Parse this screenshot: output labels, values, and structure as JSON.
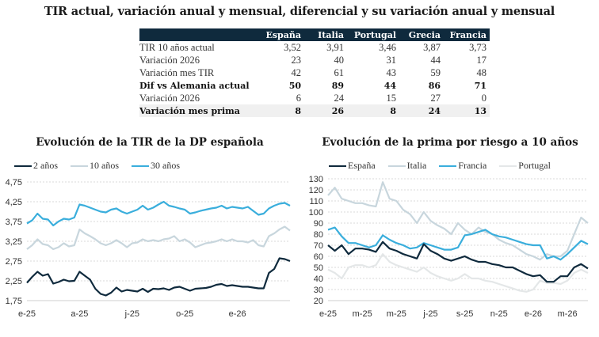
{
  "title": "TIR actual, variación anual y mensual, diferencial y su variación anual y mensual",
  "table": {
    "columns": [
      "España",
      "Italia",
      "Portugal",
      "Grecia",
      "Francia"
    ],
    "rows": [
      {
        "label": "TIR 10 años actual",
        "values": [
          "3,52",
          "3,91",
          "3,46",
          "3,87",
          "3,73"
        ],
        "bold": false,
        "shade": false
      },
      {
        "label": "Variación 2026",
        "values": [
          "23",
          "40",
          "31",
          "44",
          "17"
        ],
        "bold": false,
        "shade": false
      },
      {
        "label": "Variación mes TIR",
        "values": [
          "42",
          "61",
          "43",
          "59",
          "48"
        ],
        "bold": false,
        "shade": false
      },
      {
        "label": "Dif vs Alemania actual",
        "values": [
          "50",
          "89",
          "44",
          "86",
          "71"
        ],
        "bold": true,
        "shade": false
      },
      {
        "label": "Variación 2026",
        "values": [
          "6",
          "24",
          "15",
          "27",
          "0"
        ],
        "bold": false,
        "shade": false
      },
      {
        "label": "Variación mes prima",
        "values": [
          "8",
          "26",
          "8",
          "24",
          "13"
        ],
        "bold": true,
        "shade": true
      }
    ]
  },
  "chart_data": [
    {
      "type": "line",
      "title": "Evolución de la TIR de la DP española",
      "xlabel": "",
      "ylabel": "",
      "ylim": [
        1.75,
        4.75
      ],
      "yticks": [
        "4,75",
        "4,25",
        "3,75",
        "3,25",
        "2,75",
        "2,25",
        "1,75"
      ],
      "ytick_values": [
        4.75,
        4.25,
        3.75,
        3.25,
        2.75,
        2.25,
        1.75
      ],
      "xticks": [
        "e-25",
        "a-25",
        "j-25",
        "o-25",
        "e-26"
      ],
      "xtick_positions": [
        0,
        3,
        6,
        9,
        12
      ],
      "xlim": [
        0,
        15
      ],
      "grid": true,
      "legend_position": "top-left",
      "series": [
        {
          "name": "2 años",
          "color": "#0f2a3d",
          "x": [
            0,
            0.3,
            0.6,
            0.9,
            1.2,
            1.5,
            1.8,
            2.1,
            2.4,
            2.7,
            3.0,
            3.3,
            3.6,
            3.9,
            4.2,
            4.5,
            4.8,
            5.1,
            5.4,
            5.7,
            6.0,
            6.3,
            6.6,
            6.9,
            7.2,
            7.5,
            7.8,
            8.1,
            8.4,
            8.7,
            9.0,
            9.3,
            9.6,
            9.9,
            10.2,
            10.5,
            10.8,
            11.1,
            11.4,
            11.7,
            12.0,
            12.3,
            12.6,
            12.9,
            13.2,
            13.5,
            13.8,
            14.1,
            14.4,
            14.7,
            15.0
          ],
          "values": [
            2.2,
            2.35,
            2.48,
            2.38,
            2.42,
            2.18,
            2.22,
            2.28,
            2.24,
            2.25,
            2.48,
            2.38,
            2.28,
            2.05,
            1.92,
            1.88,
            1.95,
            2.08,
            1.98,
            2.02,
            2.0,
            1.98,
            2.05,
            1.97,
            2.05,
            2.04,
            2.06,
            2.02,
            2.08,
            2.1,
            2.05,
            2.0,
            2.05,
            2.06,
            2.07,
            2.1,
            2.15,
            2.17,
            2.12,
            2.14,
            2.12,
            2.1,
            2.1,
            2.08,
            2.06,
            2.06,
            2.45,
            2.55,
            2.82,
            2.8,
            2.75
          ]
        },
        {
          "name": "10 años",
          "color": "#c8d6dd",
          "x": [
            0,
            0.3,
            0.6,
            0.9,
            1.2,
            1.5,
            1.8,
            2.1,
            2.4,
            2.7,
            3.0,
            3.3,
            3.6,
            3.9,
            4.2,
            4.5,
            4.8,
            5.1,
            5.4,
            5.7,
            6.0,
            6.3,
            6.6,
            6.9,
            7.2,
            7.5,
            7.8,
            8.1,
            8.4,
            8.7,
            9.0,
            9.3,
            9.6,
            9.9,
            10.2,
            10.5,
            10.8,
            11.1,
            11.4,
            11.7,
            12.0,
            12.3,
            12.6,
            12.9,
            13.2,
            13.5,
            13.8,
            14.1,
            14.4,
            14.7,
            15.0
          ],
          "values": [
            3.05,
            3.15,
            3.3,
            3.18,
            3.15,
            3.05,
            3.1,
            3.2,
            3.12,
            3.15,
            3.55,
            3.45,
            3.38,
            3.3,
            3.2,
            3.15,
            3.2,
            3.28,
            3.2,
            3.1,
            3.2,
            3.22,
            3.3,
            3.25,
            3.28,
            3.25,
            3.3,
            3.32,
            3.38,
            3.25,
            3.3,
            3.22,
            3.1,
            3.15,
            3.2,
            3.22,
            3.25,
            3.3,
            3.25,
            3.3,
            3.25,
            3.25,
            3.22,
            3.28,
            3.15,
            3.12,
            3.38,
            3.45,
            3.55,
            3.62,
            3.52
          ]
        },
        {
          "name": "30 años",
          "color": "#3aaedc",
          "x": [
            0,
            0.3,
            0.6,
            0.9,
            1.2,
            1.5,
            1.8,
            2.1,
            2.4,
            2.7,
            3.0,
            3.3,
            3.6,
            3.9,
            4.2,
            4.5,
            4.8,
            5.1,
            5.4,
            5.7,
            6.0,
            6.3,
            6.6,
            6.9,
            7.2,
            7.5,
            7.8,
            8.1,
            8.4,
            8.7,
            9.0,
            9.3,
            9.6,
            9.9,
            10.2,
            10.5,
            10.8,
            11.1,
            11.4,
            11.7,
            12.0,
            12.3,
            12.6,
            12.9,
            13.2,
            13.5,
            13.8,
            14.1,
            14.4,
            14.7,
            15.0
          ],
          "values": [
            3.7,
            3.78,
            3.95,
            3.82,
            3.8,
            3.65,
            3.75,
            3.82,
            3.8,
            3.85,
            4.18,
            4.15,
            4.1,
            4.05,
            4.0,
            3.98,
            4.05,
            4.08,
            4.0,
            3.95,
            4.0,
            4.05,
            4.15,
            4.05,
            4.1,
            4.18,
            4.25,
            4.15,
            4.12,
            4.08,
            4.05,
            3.95,
            3.98,
            4.02,
            4.05,
            4.08,
            4.1,
            4.15,
            4.08,
            4.12,
            4.1,
            4.08,
            4.12,
            4.02,
            3.92,
            3.95,
            4.08,
            4.15,
            4.2,
            4.22,
            4.15
          ]
        }
      ]
    },
    {
      "type": "line",
      "title": "Evolución de la prima por riesgo a 10 años",
      "xlabel": "",
      "ylabel": "",
      "ylim": [
        20,
        130
      ],
      "yticks": [
        "130",
        "120",
        "110",
        "100",
        "90",
        "80",
        "70",
        "60",
        "50",
        "40",
        "30",
        "20"
      ],
      "ytick_values": [
        130,
        120,
        110,
        100,
        90,
        80,
        70,
        60,
        50,
        40,
        30,
        20
      ],
      "xticks": [
        "e-25",
        "m-25",
        "m-25",
        "j-25",
        "s-25",
        "n-25",
        "e-26",
        "m-26"
      ],
      "xtick_positions": [
        0,
        2,
        4,
        6,
        8,
        10,
        12,
        14
      ],
      "xlim": [
        0,
        15.2
      ],
      "grid": true,
      "legend_position": "top-left",
      "series": [
        {
          "name": "España",
          "color": "#0f2a3d",
          "x": [
            0,
            0.4,
            0.8,
            1.2,
            1.6,
            2.0,
            2.4,
            2.8,
            3.2,
            3.6,
            4.0,
            4.4,
            4.8,
            5.2,
            5.6,
            6.0,
            6.4,
            6.8,
            7.2,
            7.6,
            8.0,
            8.4,
            8.8,
            9.2,
            9.6,
            10.0,
            10.4,
            10.8,
            11.2,
            11.6,
            12.0,
            12.4,
            12.8,
            13.2,
            13.6,
            14.0,
            14.4,
            14.8,
            15.2
          ],
          "values": [
            70,
            65,
            70,
            62,
            67,
            67,
            66,
            64,
            73,
            67,
            65,
            62,
            60,
            58,
            71,
            65,
            62,
            58,
            56,
            58,
            60,
            57,
            55,
            55,
            53,
            52,
            50,
            50,
            47,
            44,
            42,
            43,
            37,
            37,
            42,
            42,
            50,
            53,
            49
          ]
        },
        {
          "name": "Italia",
          "color": "#c8d6dd",
          "x": [
            0,
            0.4,
            0.8,
            1.2,
            1.6,
            2.0,
            2.4,
            2.8,
            3.2,
            3.6,
            4.0,
            4.4,
            4.8,
            5.2,
            5.6,
            6.0,
            6.4,
            6.8,
            7.2,
            7.6,
            8.0,
            8.4,
            8.8,
            9.2,
            9.6,
            10.0,
            10.4,
            10.8,
            11.2,
            11.6,
            12.0,
            12.4,
            12.8,
            13.2,
            13.6,
            14.0,
            14.4,
            14.8,
            15.2
          ],
          "values": [
            115,
            122,
            112,
            110,
            108,
            108,
            106,
            105,
            127,
            112,
            110,
            102,
            98,
            90,
            100,
            92,
            88,
            85,
            80,
            90,
            84,
            80,
            86,
            82,
            80,
            75,
            72,
            70,
            66,
            62,
            60,
            57,
            62,
            60,
            60,
            65,
            80,
            95,
            90
          ]
        },
        {
          "name": "Francia",
          "color": "#3aaedc",
          "x": [
            0,
            0.4,
            0.8,
            1.2,
            1.6,
            2.0,
            2.4,
            2.8,
            3.2,
            3.6,
            4.0,
            4.4,
            4.8,
            5.2,
            5.6,
            6.0,
            6.4,
            6.8,
            7.2,
            7.6,
            8.0,
            8.4,
            8.8,
            9.2,
            9.6,
            10.0,
            10.4,
            10.8,
            11.2,
            11.6,
            12.0,
            12.4,
            12.8,
            13.2,
            13.6,
            14.0,
            14.4,
            14.8,
            15.2
          ],
          "values": [
            84,
            86,
            78,
            72,
            72,
            70,
            68,
            70,
            79,
            75,
            72,
            70,
            67,
            68,
            72,
            70,
            68,
            66,
            66,
            68,
            79,
            80,
            82,
            84,
            80,
            78,
            77,
            75,
            73,
            71,
            70,
            70,
            58,
            60,
            57,
            62,
            68,
            74,
            71
          ]
        },
        {
          "name": "Portugal",
          "color": "#e4e7e8",
          "x": [
            0,
            0.4,
            0.8,
            1.2,
            1.6,
            2.0,
            2.4,
            2.8,
            3.2,
            3.6,
            4.0,
            4.4,
            4.8,
            5.2,
            5.6,
            6.0,
            6.4,
            6.8,
            7.2,
            7.6,
            8.0,
            8.4,
            8.8,
            9.2,
            9.6,
            10.0,
            10.4,
            10.8,
            11.2,
            11.6,
            12.0,
            12.4,
            12.8,
            13.2,
            13.6,
            14.0,
            14.4,
            14.8,
            15.2
          ],
          "values": [
            48,
            45,
            40,
            50,
            52,
            52,
            50,
            52,
            62,
            55,
            52,
            50,
            48,
            46,
            50,
            45,
            42,
            40,
            38,
            40,
            44,
            40,
            40,
            38,
            37,
            35,
            33,
            31,
            29,
            28,
            30,
            38,
            36,
            36,
            35,
            38,
            45,
            48,
            45
          ]
        }
      ]
    }
  ]
}
